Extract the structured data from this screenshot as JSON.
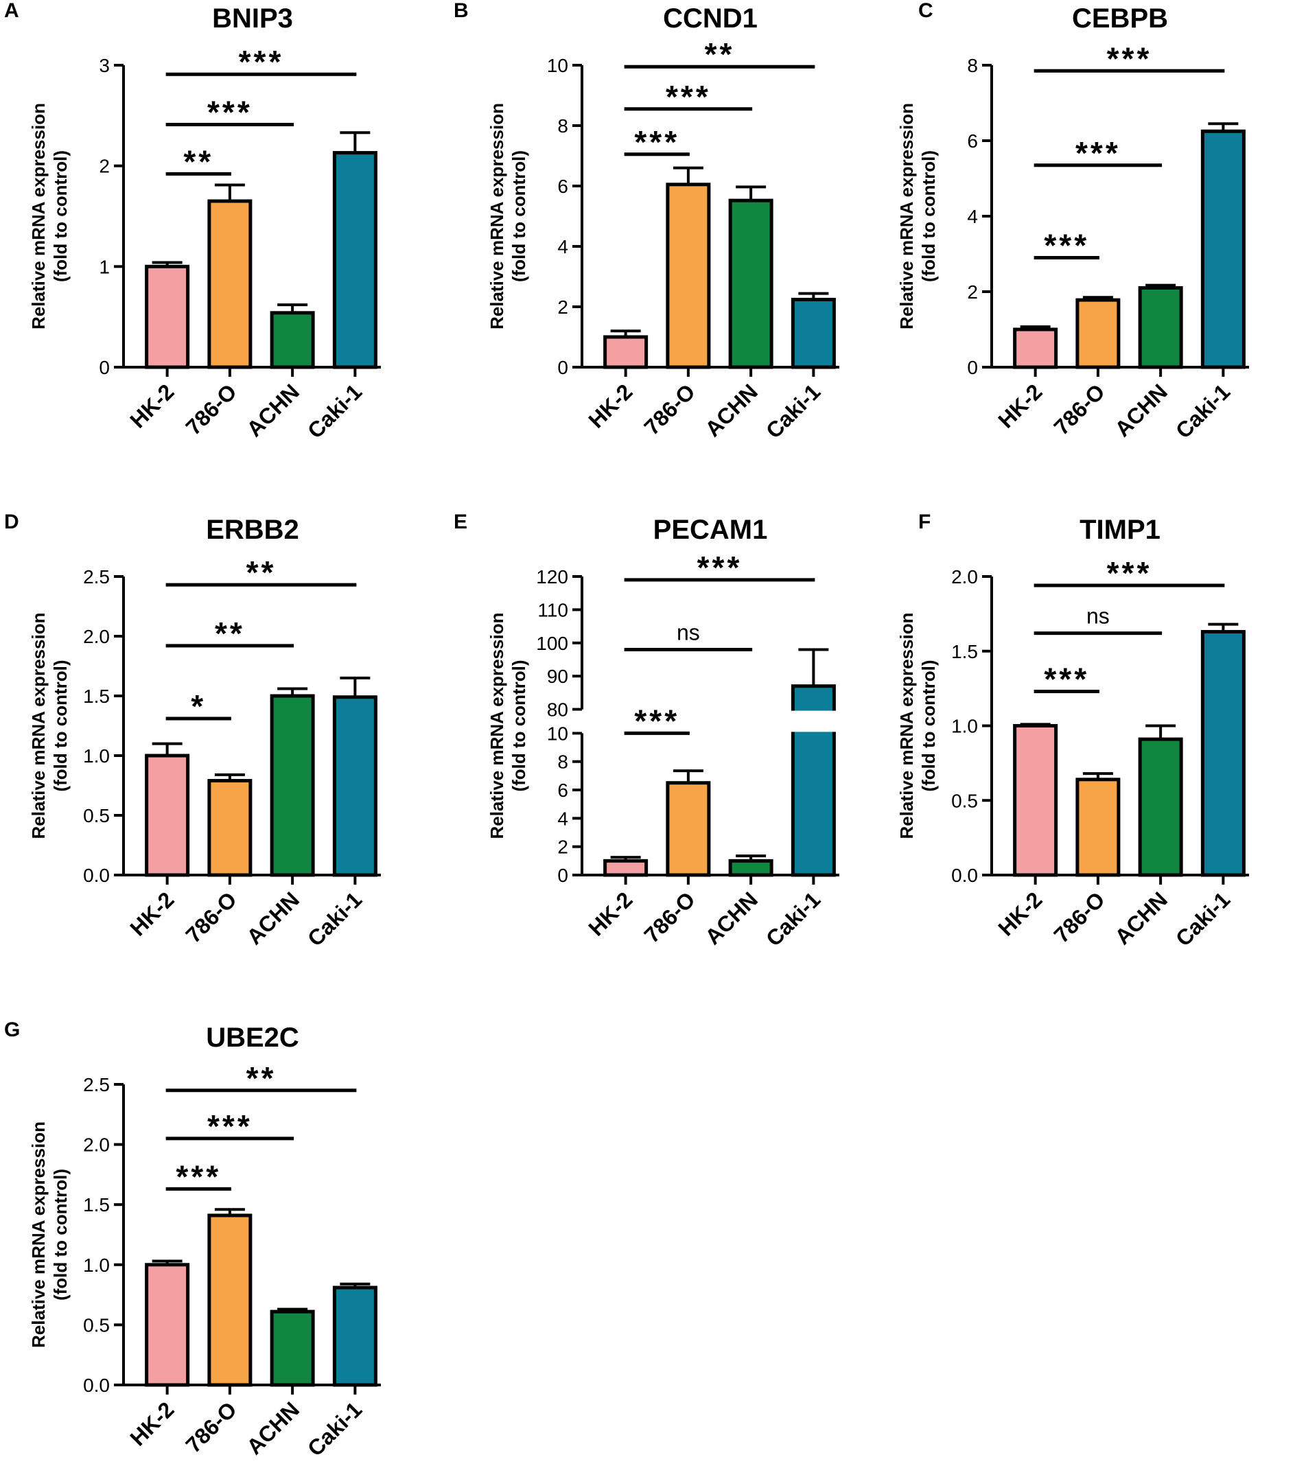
{
  "figure": {
    "y_axis_label_line1": "Relative mRNA expression",
    "y_axis_label_line2": "(fold to control)",
    "colors": {
      "HK-2": "#f4a0a3",
      "786-O": "#f7a448",
      "ACHN": "#118640",
      "Caki-1": "#0d7e99",
      "axis": "#000000"
    }
  },
  "chart_data": [
    {
      "panel": "A",
      "title": "BNIP3",
      "type": "bar",
      "categories": [
        "HK-2",
        "786-O",
        "ACHN",
        "Caki-1"
      ],
      "values": [
        1.0,
        1.65,
        0.54,
        2.13
      ],
      "errors": [
        0.04,
        0.16,
        0.08,
        0.2
      ],
      "ylim": [
        0,
        3
      ],
      "yticks": [
        0,
        1,
        2,
        3
      ],
      "tick_labels": [
        "0",
        "1",
        "2",
        "3"
      ],
      "significance": [
        {
          "from": 0,
          "to": 1,
          "label": "**",
          "y": 1.92
        },
        {
          "from": 0,
          "to": 2,
          "label": "***",
          "y": 2.41
        },
        {
          "from": 0,
          "to": 3,
          "label": "***",
          "y": 2.91
        }
      ]
    },
    {
      "panel": "B",
      "title": "CCND1",
      "type": "bar",
      "categories": [
        "HK-2",
        "786-O",
        "ACHN",
        "Caki-1"
      ],
      "values": [
        1.0,
        6.05,
        5.52,
        2.24
      ],
      "errors": [
        0.2,
        0.55,
        0.45,
        0.2
      ],
      "ylim": [
        0,
        10
      ],
      "yticks": [
        0,
        2,
        4,
        6,
        8,
        10
      ],
      "tick_labels": [
        "0",
        "2",
        "4",
        "6",
        "8",
        "10"
      ],
      "significance": [
        {
          "from": 0,
          "to": 1,
          "label": "***",
          "y": 7.05
        },
        {
          "from": 0,
          "to": 2,
          "label": "***",
          "y": 8.55
        },
        {
          "from": 0,
          "to": 3,
          "label": "**",
          "y": 9.95
        }
      ]
    },
    {
      "panel": "C",
      "title": "CEBPB",
      "type": "bar",
      "categories": [
        "HK-2",
        "786-O",
        "ACHN",
        "Caki-1"
      ],
      "values": [
        1.0,
        1.78,
        2.1,
        6.25
      ],
      "errors": [
        0.07,
        0.07,
        0.07,
        0.2
      ],
      "ylim": [
        0,
        8
      ],
      "yticks": [
        0,
        2,
        4,
        6,
        8
      ],
      "tick_labels": [
        "0",
        "2",
        "4",
        "6",
        "8"
      ],
      "significance": [
        {
          "from": 0,
          "to": 1,
          "label": "***",
          "y": 2.9
        },
        {
          "from": 0,
          "to": 2,
          "label": "***",
          "y": 5.35
        },
        {
          "from": 0,
          "to": 3,
          "label": "***",
          "y": 7.85
        }
      ]
    },
    {
      "panel": "D",
      "title": "ERBB2",
      "type": "bar",
      "categories": [
        "HK-2",
        "786-O",
        "ACHN",
        "Caki-1"
      ],
      "values": [
        1.0,
        0.79,
        1.5,
        1.49
      ],
      "errors": [
        0.1,
        0.05,
        0.06,
        0.16
      ],
      "ylim": [
        0,
        2.5
      ],
      "yticks": [
        0,
        0.5,
        1.0,
        1.5,
        2.0,
        2.5
      ],
      "tick_labels": [
        "0.0",
        "0.5",
        "1.0",
        "1.5",
        "2.0",
        "2.5"
      ],
      "significance": [
        {
          "from": 0,
          "to": 1,
          "label": "*",
          "y": 1.31
        },
        {
          "from": 0,
          "to": 2,
          "label": "**",
          "y": 1.92
        },
        {
          "from": 0,
          "to": 3,
          "label": "**",
          "y": 2.43
        }
      ]
    },
    {
      "panel": "E",
      "title": "PECAM1",
      "type": "bar",
      "categories": [
        "HK-2",
        "786-O",
        "ACHN",
        "Caki-1"
      ],
      "values": [
        1.0,
        6.5,
        1.0,
        87
      ],
      "errors": [
        0.25,
        0.85,
        0.35,
        11
      ],
      "ylim": [
        0,
        120
      ],
      "axis_break": [
        10,
        80
      ],
      "yticks": [
        0,
        2,
        4,
        6,
        8,
        10,
        80,
        90,
        100,
        110,
        120
      ],
      "tick_labels": [
        "0",
        "2",
        "4",
        "6",
        "8",
        "10",
        "80",
        "90",
        "100",
        "110",
        "120"
      ],
      "significance": [
        {
          "from": 0,
          "to": 1,
          "label": "***",
          "y": 10
        },
        {
          "from": 0,
          "to": 2,
          "label": "ns",
          "y": 98
        },
        {
          "from": 0,
          "to": 3,
          "label": "***",
          "y": 119
        }
      ]
    },
    {
      "panel": "F",
      "title": "TIMP1",
      "type": "bar",
      "categories": [
        "HK-2",
        "786-O",
        "ACHN",
        "Caki-1"
      ],
      "values": [
        1.0,
        0.64,
        0.91,
        1.63
      ],
      "errors": [
        0.01,
        0.04,
        0.09,
        0.05
      ],
      "ylim": [
        0,
        2.0
      ],
      "yticks": [
        0,
        0.5,
        1.0,
        1.5,
        2.0
      ],
      "tick_labels": [
        "0.0",
        "0.5",
        "1.0",
        "1.5",
        "2.0"
      ],
      "significance": [
        {
          "from": 0,
          "to": 1,
          "label": "***",
          "y": 1.23
        },
        {
          "from": 0,
          "to": 2,
          "label": "ns",
          "y": 1.62
        },
        {
          "from": 0,
          "to": 3,
          "label": "***",
          "y": 1.94
        }
      ]
    },
    {
      "panel": "G",
      "title": "UBE2C",
      "type": "bar",
      "categories": [
        "HK-2",
        "786-O",
        "ACHN",
        "Caki-1"
      ],
      "values": [
        1.0,
        1.41,
        0.61,
        0.81
      ],
      "errors": [
        0.03,
        0.05,
        0.02,
        0.03
      ],
      "ylim": [
        0,
        2.5
      ],
      "yticks": [
        0,
        0.5,
        1.0,
        1.5,
        2.0,
        2.5
      ],
      "tick_labels": [
        "0.0",
        "0.5",
        "1.0",
        "1.5",
        "2.0",
        "2.5"
      ],
      "significance": [
        {
          "from": 0,
          "to": 1,
          "label": "***",
          "y": 1.63
        },
        {
          "from": 0,
          "to": 2,
          "label": "***",
          "y": 2.05
        },
        {
          "from": 0,
          "to": 3,
          "label": "**",
          "y": 2.45
        }
      ]
    }
  ]
}
